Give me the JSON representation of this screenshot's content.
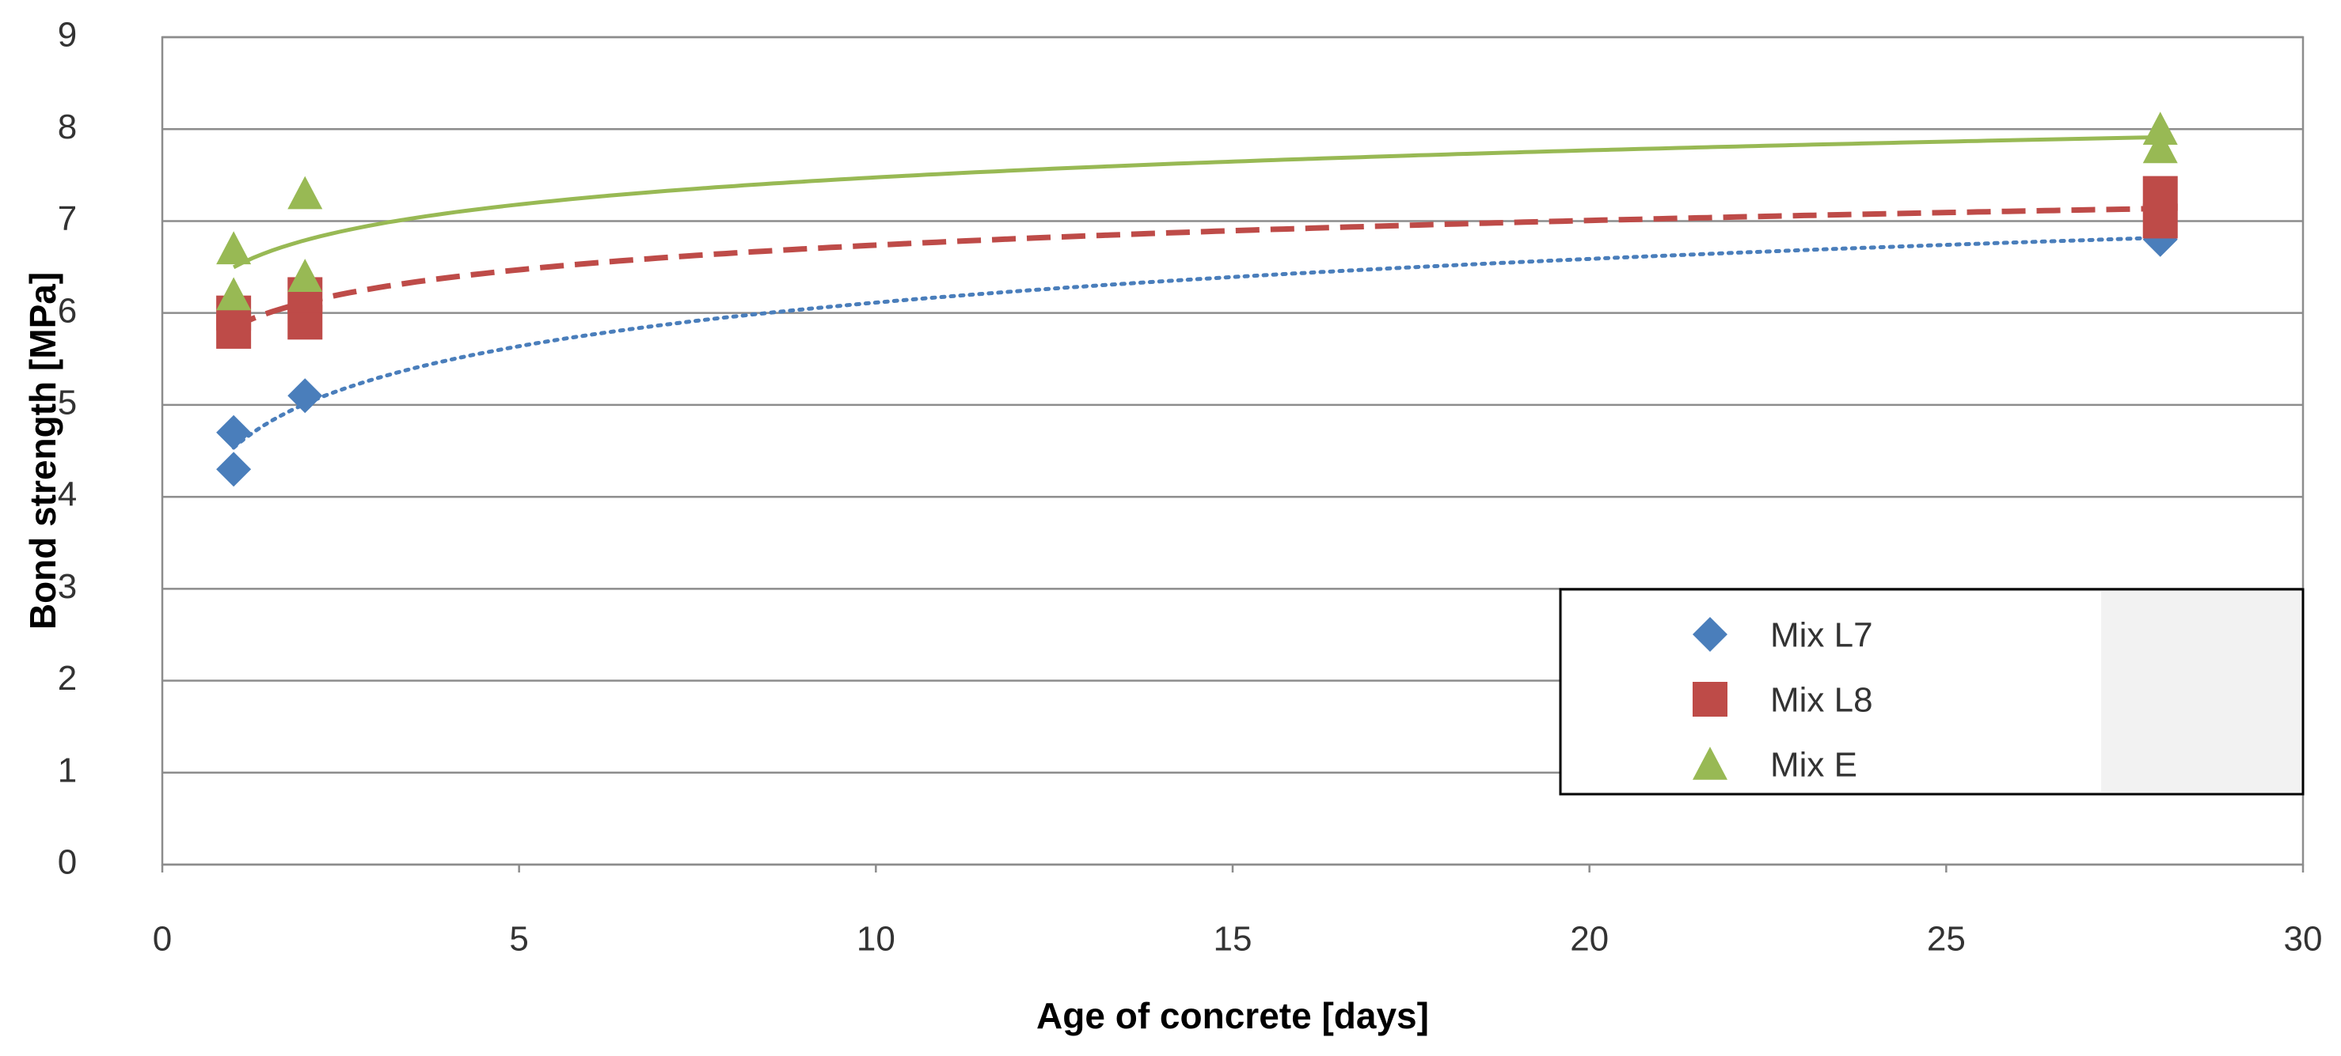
{
  "chart_data": {
    "type": "scatter",
    "x_label": "Age of concrete [days]",
    "y_label": "Bond strength [MPa]",
    "xlim": [
      0,
      30
    ],
    "xticks": [
      0,
      5,
      10,
      15,
      20,
      25,
      30
    ],
    "ylim": [
      0,
      9
    ],
    "yticks": [
      0,
      1,
      2,
      3,
      4,
      5,
      6,
      7,
      8,
      9
    ],
    "grid": true,
    "trendline": "logarithmic",
    "legend": "lower right",
    "series": [
      {
        "name": "Mix L7",
        "color": "#4a7ebb",
        "marker": "diamond",
        "trend_style": "dotted",
        "x": [
          1,
          1,
          2,
          28
        ],
        "values": [
          4.3,
          4.7,
          5.1,
          6.8
        ]
      },
      {
        "name": "Mix L8",
        "color": "#be4b48",
        "marker": "square",
        "trend_style": "dashed",
        "x": [
          1,
          1,
          2,
          2,
          28,
          28
        ],
        "values": [
          5.8,
          6.0,
          5.9,
          6.2,
          7.0,
          7.3
        ]
      },
      {
        "name": "Mix E",
        "color": "#98b954",
        "marker": "triangle",
        "trend_style": "solid",
        "x": [
          1,
          1,
          2,
          2,
          28,
          28
        ],
        "values": [
          6.2,
          6.7,
          6.4,
          7.3,
          7.8,
          8.0
        ]
      }
    ]
  }
}
